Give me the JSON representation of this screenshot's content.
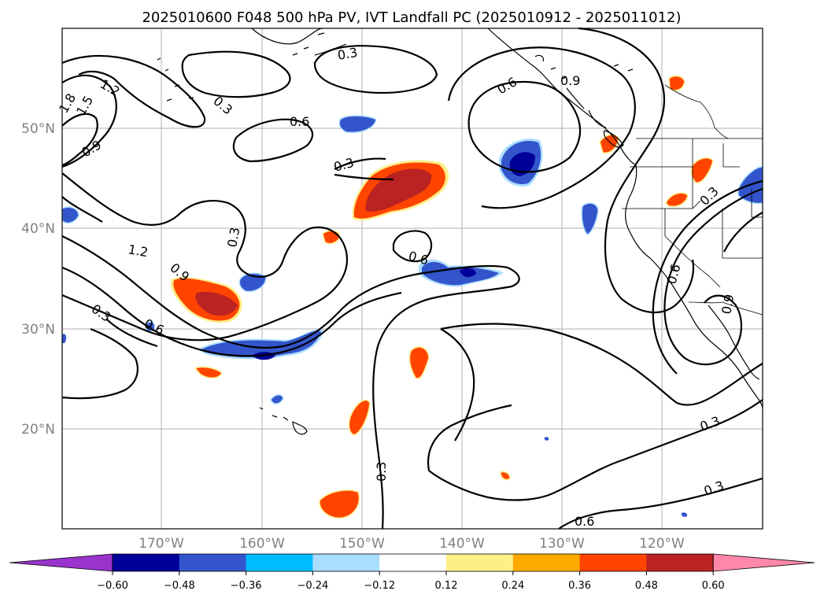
{
  "title": "2025010600 F048 500 hPa PV, IVT Landfall PC (2025010912 - 2025011012)",
  "map": {
    "lon_labels": [
      "170°W",
      "160°W",
      "150°W",
      "140°W",
      "130°W",
      "120°W"
    ],
    "lat_labels": [
      "50°N",
      "40°N",
      "30°N",
      "20°N"
    ],
    "contour_labels": [
      "0.3",
      "0.6",
      "0.9",
      "1.2",
      "1.5",
      "1.8"
    ]
  },
  "colorbar": {
    "ticks": [
      "−0.60",
      "−0.48",
      "−0.36",
      "−0.24",
      "−0.12",
      "0.12",
      "0.24",
      "0.36",
      "0.48",
      "0.60"
    ],
    "colors": [
      "#9933cc",
      "#000099",
      "#3355cc",
      "#00bbff",
      "#aaddff",
      "#ffffff",
      "#ffee88",
      "#ffaa00",
      "#ff4400",
      "#bb2222",
      "#ff88aa"
    ]
  },
  "fill_colors": {
    "neg_light": "#aaddff",
    "neg_mid": "#00bbff",
    "neg_strong": "#3355cc",
    "neg_max": "#000099",
    "pos_light": "#ffee88",
    "pos_mid": "#ffaa00",
    "pos_strong": "#ff4400",
    "pos_max": "#bb2222"
  }
}
